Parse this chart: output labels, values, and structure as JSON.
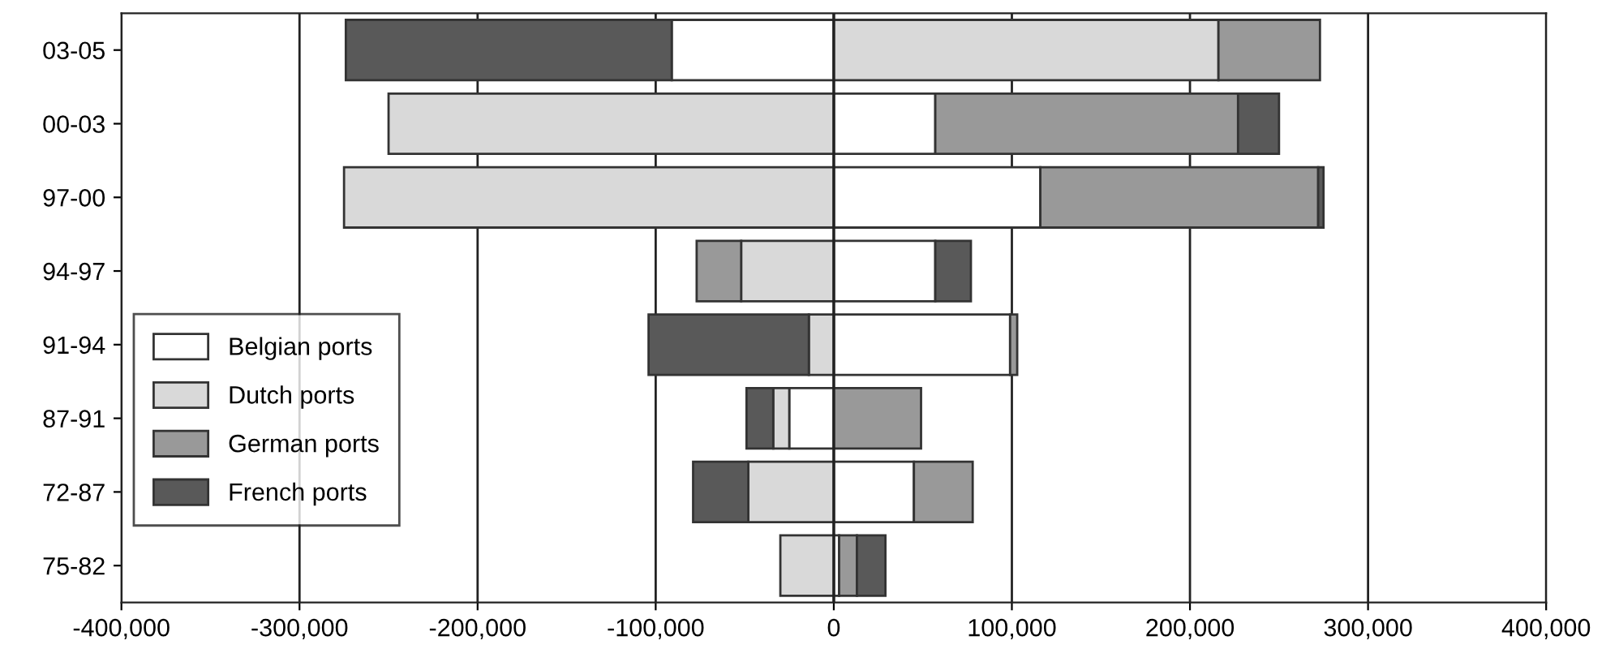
{
  "chart_data": {
    "type": "bar",
    "orientation": "horizontal",
    "stacked": true,
    "categories": [
      "03-05",
      "00-03",
      "97-00",
      "94-97",
      "91-94",
      "87-91",
      "72-87",
      "75-82"
    ],
    "series": [
      {
        "name": "Belgian ports",
        "color": "#ffffff",
        "values": [
          -91000,
          57000,
          116000,
          57000,
          99000,
          -25000,
          45000,
          3000
        ]
      },
      {
        "name": "Dutch ports",
        "color": "#d9d9d9",
        "values": [
          216000,
          -250000,
          -275000,
          -52000,
          -14000,
          -9000,
          -48000,
          -30000
        ]
      },
      {
        "name": "German ports",
        "color": "#999999",
        "values": [
          57000,
          170000,
          156000,
          -25000,
          4000,
          49000,
          33000,
          10000
        ]
      },
      {
        "name": "French ports",
        "color": "#595959",
        "values": [
          -183000,
          23000,
          3000,
          20000,
          -90000,
          -15000,
          -31000,
          16000
        ]
      }
    ],
    "xlim": [
      -400000,
      400000
    ],
    "xticks": [
      {
        "value": -400000,
        "label": "-400,000"
      },
      {
        "value": -300000,
        "label": "-300,000"
      },
      {
        "value": -200000,
        "label": "-200,000"
      },
      {
        "value": -100000,
        "label": "-100,000"
      },
      0,
      {
        "value": 100000,
        "label": "100,000"
      },
      {
        "value": 200000,
        "label": "200,000"
      },
      {
        "value": 300000,
        "label": "300,000"
      },
      {
        "value": 400000,
        "label": "400,000"
      }
    ],
    "grid": "x",
    "legend": "center left"
  }
}
